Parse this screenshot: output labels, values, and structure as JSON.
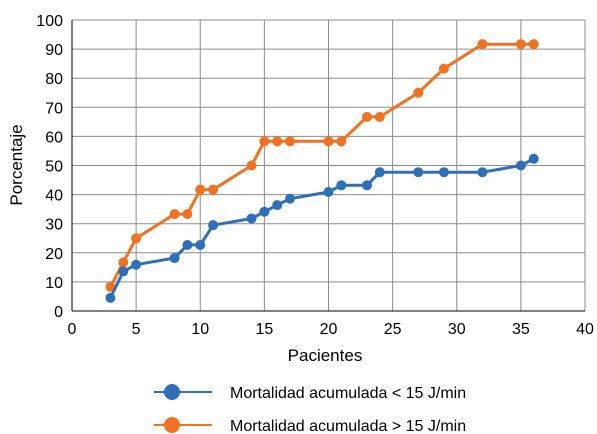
{
  "chart_data": {
    "type": "line",
    "title": "",
    "xlabel": "Pacientes",
    "ylabel": "Porcentaje",
    "xlim": [
      0,
      40
    ],
    "ylim": [
      0,
      100
    ],
    "x_ticks": [
      0,
      5,
      10,
      15,
      20,
      25,
      30,
      35,
      40
    ],
    "y_ticks": [
      0,
      10,
      20,
      30,
      40,
      50,
      60,
      70,
      80,
      90,
      100
    ],
    "grid": true,
    "legend_position": "bottom",
    "series": [
      {
        "name": "Mortalidad acumulada < 15 J/min",
        "color": "#2f6fb5",
        "x": [
          3,
          4,
          5,
          8,
          9,
          10,
          11,
          14,
          15,
          16,
          17,
          20,
          21,
          23,
          24,
          27,
          29,
          32,
          35,
          36
        ],
        "y": [
          4.5,
          13.6,
          15.9,
          18.2,
          22.7,
          22.7,
          29.5,
          31.8,
          34.1,
          36.4,
          38.6,
          40.9,
          43.2,
          43.2,
          47.7,
          47.7,
          47.7,
          47.7,
          50,
          52.3
        ]
      },
      {
        "name": "Mortalidad acumulada > 15 J/min",
        "color": "#f07223",
        "x": [
          3,
          4,
          5,
          8,
          9,
          10,
          11,
          14,
          15,
          16,
          17,
          20,
          21,
          23,
          24,
          27,
          29,
          32,
          35,
          36
        ],
        "y": [
          8.3,
          16.7,
          25,
          33.3,
          33.3,
          41.7,
          41.7,
          50,
          58.3,
          58.3,
          58.3,
          58.3,
          58.3,
          66.7,
          66.7,
          75,
          83.3,
          91.7,
          91.7,
          91.7
        ]
      }
    ]
  }
}
